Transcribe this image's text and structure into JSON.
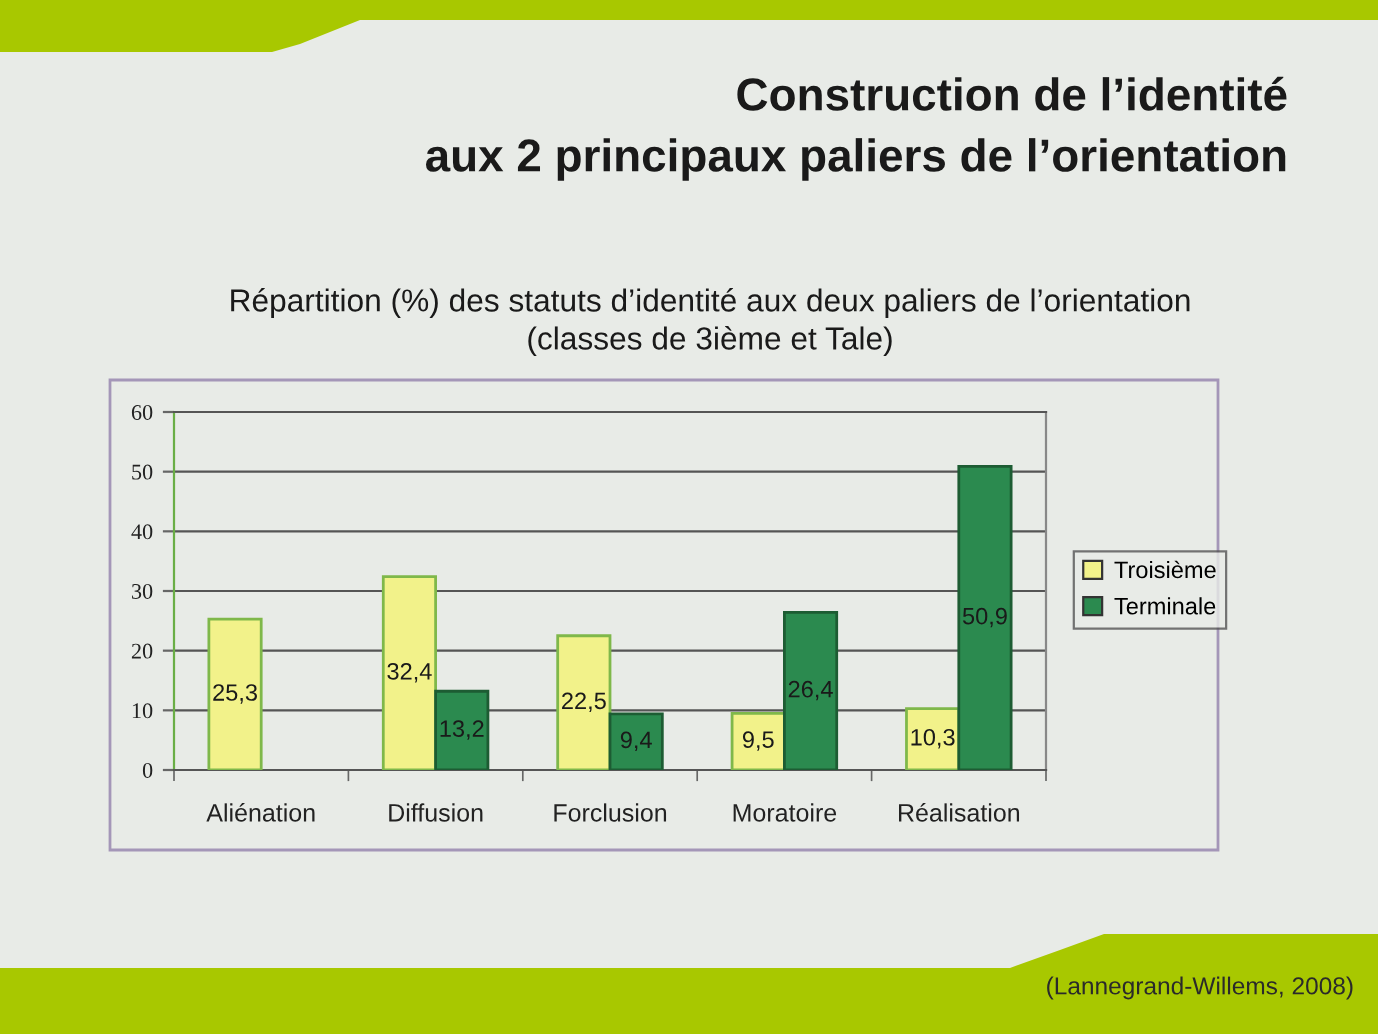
{
  "chart_data": {
    "type": "bar",
    "title": "Construction de l’identité\naux 2 principaux paliers de l’orientation",
    "subtitle": "Répartition (%) des statuts d’identité aux deux paliers de l’orientation\n(classes de 3ième et Tale)",
    "categories": [
      "Aliénation",
      "Diffusion",
      "Forclusion",
      "Moratoire",
      "Réalisation"
    ],
    "series": [
      {
        "name": "Troisième",
        "color": "#f2f28a",
        "values": [
          25.3,
          32.4,
          22.5,
          9.5,
          10.3
        ],
        "value_labels": [
          "25,3",
          "32,4",
          "22,5",
          "9,5",
          "10,3"
        ]
      },
      {
        "name": "Terminale",
        "color": "#2b8a4f",
        "values": [
          null,
          13.2,
          9.4,
          26.4,
          50.9
        ],
        "value_labels": [
          null,
          "13,2",
          "9,4",
          "26,4",
          "50,9"
        ]
      }
    ],
    "ylim": [
      0,
      60
    ],
    "yticks": [
      0,
      10,
      20,
      30,
      40,
      50,
      60
    ],
    "grid": "y",
    "legend": "right",
    "annotations": [
      "(Lannegrand-Willems, 2008)"
    ]
  }
}
